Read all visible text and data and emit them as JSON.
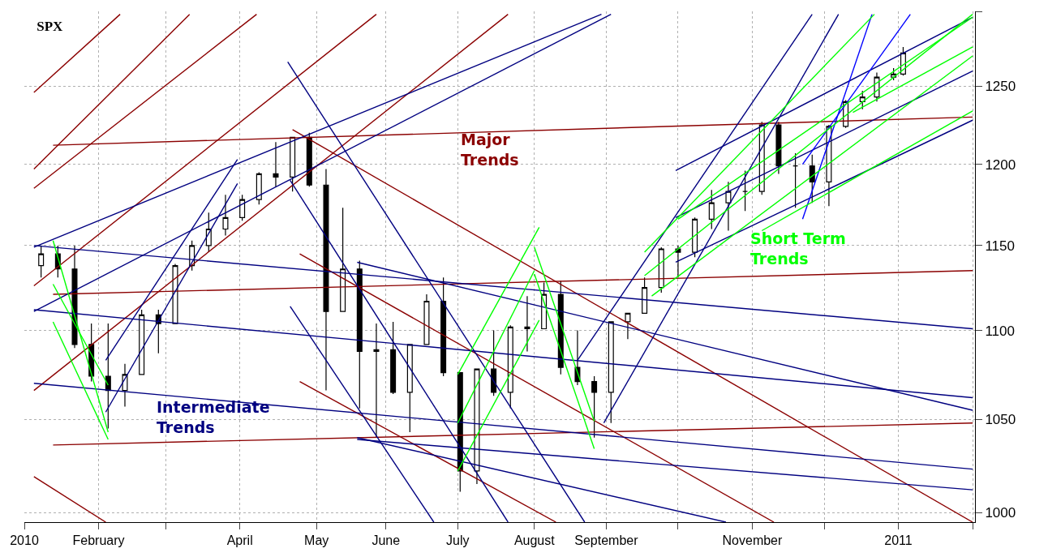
{
  "chart_data": {
    "type": "candlestick",
    "title": "SPX",
    "xlim": [
      "2010-01-01",
      "2011-02-02"
    ],
    "ylim": [
      995,
      1300
    ],
    "log": true,
    "grid": true,
    "xticks": [
      {
        "value": "2010-01-01",
        "label": "2010"
      },
      {
        "value": "2010-02-01",
        "label": "February"
      },
      {
        "value": "2010-03-01",
        "label": null
      },
      {
        "value": "2010-04-01",
        "label": "April"
      },
      {
        "value": "2010-05-03",
        "label": "May"
      },
      {
        "value": "2010-06-01",
        "label": "June"
      },
      {
        "value": "2010-07-01",
        "label": "July"
      },
      {
        "value": "2010-08-02",
        "label": "August"
      },
      {
        "value": "2010-09-01",
        "label": "September"
      },
      {
        "value": "2010-10-01",
        "label": null
      },
      {
        "value": "2010-11-01",
        "label": "November"
      },
      {
        "value": "2010-12-01",
        "label": null
      },
      {
        "value": "2011-01-01",
        "label": "2011"
      },
      {
        "value": "2011-02-01",
        "label": null
      }
    ],
    "yticks": [
      1000,
      1050,
      1100,
      1150,
      1200,
      1250,
      {
        "value": 1300,
        "label": null
      }
    ],
    "x": [
      "2010-01-08",
      "2010-01-15",
      "2010-01-22",
      "2010-01-29",
      "2010-02-05",
      "2010-02-12",
      "2010-02-19",
      "2010-02-26",
      "2010-03-05",
      "2010-03-12",
      "2010-03-19",
      "2010-03-26",
      "2010-04-02",
      "2010-04-09",
      "2010-04-16",
      "2010-04-23",
      "2010-04-30",
      "2010-05-07",
      "2010-05-14",
      "2010-05-21",
      "2010-05-28",
      "2010-06-04",
      "2010-06-11",
      "2010-06-18",
      "2010-06-25",
      "2010-07-02",
      "2010-07-09",
      "2010-07-16",
      "2010-07-23",
      "2010-07-30",
      "2010-08-06",
      "2010-08-13",
      "2010-08-20",
      "2010-08-27",
      "2010-09-03",
      "2010-09-10",
      "2010-09-17",
      "2010-09-24",
      "2010-10-01",
      "2010-10-08",
      "2010-10-15",
      "2010-10-22",
      "2010-10-29",
      "2010-11-05",
      "2010-11-12",
      "2010-11-19",
      "2010-11-26",
      "2010-12-03",
      "2010-12-10",
      "2010-12-17",
      "2010-12-23",
      "2010-12-30",
      "2011-01-03"
    ],
    "ohlc": [
      [
        1138,
        1150,
        1131,
        1145
      ],
      [
        1145,
        1150,
        1131,
        1136
      ],
      [
        1136,
        1150,
        1090,
        1092
      ],
      [
        1092,
        1104,
        1071,
        1074
      ],
      [
        1074,
        1104,
        1045,
        1066
      ],
      [
        1066,
        1081,
        1057,
        1075
      ],
      [
        1075,
        1112,
        1075,
        1109
      ],
      [
        1109,
        1112,
        1087,
        1104
      ],
      [
        1104,
        1139,
        1104,
        1138
      ],
      [
        1138,
        1153,
        1135,
        1150
      ],
      [
        1150,
        1170,
        1146,
        1160
      ],
      [
        1160,
        1181,
        1156,
        1167
      ],
      [
        1167,
        1181,
        1165,
        1178
      ],
      [
        1178,
        1195,
        1175,
        1194
      ],
      [
        1194,
        1214,
        1186,
        1192
      ],
      [
        1192,
        1217,
        1183,
        1217
      ],
      [
        1217,
        1220,
        1186,
        1187
      ],
      [
        1187,
        1197,
        1066,
        1111
      ],
      [
        1111,
        1173,
        1111,
        1136
      ],
      [
        1136,
        1141,
        1056,
        1088
      ],
      [
        1088,
        1104,
        1040,
        1089
      ],
      [
        1089,
        1105,
        1064,
        1065
      ],
      [
        1065,
        1092,
        1043,
        1092
      ],
      [
        1092,
        1121,
        1092,
        1117
      ],
      [
        1117,
        1131,
        1074,
        1076
      ],
      [
        1076,
        1076,
        1011,
        1022
      ],
      [
        1022,
        1078,
        1015,
        1078
      ],
      [
        1078,
        1100,
        1063,
        1065
      ],
      [
        1065,
        1103,
        1056,
        1102
      ],
      [
        1102,
        1120,
        1088,
        1101
      ],
      [
        1101,
        1128,
        1101,
        1121
      ],
      [
        1121,
        1129,
        1075,
        1079
      ],
      [
        1079,
        1100,
        1069,
        1071
      ],
      [
        1071,
        1074,
        1040,
        1065
      ],
      [
        1065,
        1105,
        1048,
        1105
      ],
      [
        1105,
        1110,
        1095,
        1110
      ],
      [
        1110,
        1131,
        1110,
        1125
      ],
      [
        1125,
        1149,
        1122,
        1148
      ],
      [
        1148,
        1150,
        1131,
        1146
      ],
      [
        1146,
        1167,
        1143,
        1166
      ],
      [
        1166,
        1184,
        1160,
        1176
      ],
      [
        1176,
        1189,
        1159,
        1183
      ],
      [
        1183,
        1196,
        1171,
        1183
      ],
      [
        1183,
        1227,
        1181,
        1225
      ],
      [
        1225,
        1227,
        1194,
        1199
      ],
      [
        1199,
        1207,
        1173,
        1199
      ],
      [
        1199,
        1206,
        1176,
        1189
      ],
      [
        1189,
        1225,
        1174,
        1224
      ],
      [
        1224,
        1241,
        1223,
        1240
      ],
      [
        1240,
        1247,
        1235,
        1243
      ],
      [
        1243,
        1259,
        1240,
        1256
      ],
      [
        1256,
        1262,
        1254,
        1258
      ],
      [
        1258,
        1276,
        1257,
        1272
      ]
    ],
    "series": [
      {
        "type": "line",
        "name": "Major Trends",
        "color": "#8b0000",
        "x": [
          "2010-01-13",
          "2011-02-01"
        ],
        "values": [
          1212,
          1230
        ]
      },
      {
        "type": "line",
        "color": "#8b0000",
        "x": [
          "2010-01-13",
          "2011-02-01"
        ],
        "values": [
          1121,
          1135
        ]
      },
      {
        "type": "line",
        "color": "#8b0000",
        "x": [
          "2010-01-13",
          "2011-02-01"
        ],
        "values": [
          1036,
          1048
        ]
      },
      {
        "type": "line",
        "color": "#8b0000",
        "x": [
          "2010-04-23",
          "2011-02-01"
        ],
        "values": [
          1222,
          995
        ]
      },
      {
        "type": "line",
        "color": "#8b0000",
        "x": [
          "2010-04-26",
          "2010-11-10"
        ],
        "values": [
          1145,
          995
        ]
      },
      {
        "type": "line",
        "color": "#8b0000",
        "x": [
          "2010-04-26",
          "2010-08-11"
        ],
        "values": [
          1071,
          995
        ]
      },
      {
        "type": "line",
        "color": "#8b0000",
        "x": [
          "2010-01-05",
          "2010-02-04"
        ],
        "values": [
          1019,
          995
        ]
      },
      {
        "type": "line",
        "color": "#8b0000",
        "x": [
          "2010-01-05",
          "2010-07-22"
        ],
        "values": [
          1066,
          1298
        ]
      },
      {
        "type": "line",
        "color": "#8b0000",
        "x": [
          "2010-01-05",
          "2010-05-28"
        ],
        "values": [
          1126,
          1298
        ]
      },
      {
        "type": "line",
        "color": "#8b0000",
        "x": [
          "2010-01-05",
          "2010-04-08"
        ],
        "values": [
          1185,
          1298
        ]
      },
      {
        "type": "line",
        "color": "#8b0000",
        "x": [
          "2010-01-05",
          "2010-03-11"
        ],
        "values": [
          1197,
          1298
        ]
      },
      {
        "type": "line",
        "color": "#8b0000",
        "x": [
          "2010-01-05",
          "2010-02-10"
        ],
        "values": [
          1246,
          1298
        ]
      },
      {
        "type": "line",
        "name": "Intermediate Trends",
        "color": "#000080",
        "x": [
          "2010-01-05",
          "2011-02-01"
        ],
        "values": [
          1150,
          1101
        ]
      },
      {
        "type": "line",
        "color": "#000080",
        "x": [
          "2010-01-05",
          "2011-02-01"
        ],
        "values": [
          1112,
          1062
        ]
      },
      {
        "type": "line",
        "color": "#000080",
        "x": [
          "2010-01-05",
          "2011-02-01"
        ],
        "values": [
          1070,
          1023
        ]
      },
      {
        "type": "line",
        "color": "#000080",
        "x": [
          "2010-05-20",
          "2011-02-01"
        ],
        "values": [
          1140,
          1055
        ]
      },
      {
        "type": "line",
        "color": "#000080",
        "x": [
          "2010-05-20",
          "2011-02-01"
        ],
        "values": [
          1039,
          1012
        ]
      },
      {
        "type": "line",
        "color": "#000080",
        "x": [
          "2010-05-20",
          "2010-10-21"
        ],
        "values": [
          1040,
          995
        ]
      },
      {
        "type": "line",
        "color": "#000080",
        "x": [
          "2010-01-05",
          "2010-08-30"
        ],
        "values": [
          1149,
          1298
        ]
      },
      {
        "type": "line",
        "color": "#000080",
        "x": [
          "2010-01-05",
          "2010-09-03"
        ],
        "values": [
          1111,
          1298
        ]
      },
      {
        "type": "line",
        "color": "#000080",
        "x": [
          "2010-02-04",
          "2010-03-31"
        ],
        "values": [
          1083,
          1203
        ]
      },
      {
        "type": "line",
        "color": "#000080",
        "x": [
          "2010-02-04",
          "2010-03-31"
        ],
        "values": [
          1054,
          1188
        ]
      },
      {
        "type": "line",
        "color": "#000080",
        "x": [
          "2010-04-21",
          "2010-08-23"
        ],
        "values": [
          1266,
          995
        ]
      },
      {
        "type": "line",
        "color": "#000080",
        "x": [
          "2010-04-22",
          "2010-07-22"
        ],
        "values": [
          1190,
          995
        ]
      },
      {
        "type": "line",
        "color": "#000080",
        "x": [
          "2010-04-22",
          "2010-06-21"
        ],
        "values": [
          1114,
          995
        ]
      },
      {
        "type": "line",
        "color": "#000080",
        "x": [
          "2010-08-20",
          "2010-11-26"
        ],
        "values": [
          1083,
          1298
        ]
      },
      {
        "type": "line",
        "color": "#000080",
        "x": [
          "2010-08-31",
          "2010-12-07"
        ],
        "values": [
          1048,
          1298
        ]
      },
      {
        "type": "line",
        "color": "#000080",
        "x": [
          "2010-09-30",
          "2011-02-01"
        ],
        "values": [
          1196,
          1296
        ]
      },
      {
        "type": "line",
        "color": "#000080",
        "x": [
          "2010-09-30",
          "2011-02-01"
        ],
        "values": [
          1167,
          1260
        ]
      },
      {
        "type": "line",
        "color": "#000080",
        "x": [
          "2010-09-30",
          "2011-02-01"
        ],
        "values": [
          1140,
          1228
        ]
      },
      {
        "type": "line",
        "color": "#0000ff",
        "x": [
          "2010-11-22",
          "2010-12-21"
        ],
        "values": [
          1166,
          1298
        ]
      },
      {
        "type": "line",
        "color": "#0000ff",
        "x": [
          "2010-11-22",
          "2011-01-06"
        ],
        "values": [
          1200,
          1298
        ]
      },
      {
        "type": "line",
        "color": "#00ff00",
        "x": [
          "2010-01-13",
          "2010-02-05"
        ],
        "values": [
          1153,
          1043
        ]
      },
      {
        "type": "line",
        "color": "#00ff00",
        "x": [
          "2010-01-13",
          "2010-02-05"
        ],
        "values": [
          1127,
          1069
        ]
      },
      {
        "type": "line",
        "color": "#00ff00",
        "x": [
          "2010-01-13",
          "2010-02-05"
        ],
        "values": [
          1105,
          1039
        ]
      },
      {
        "type": "line",
        "color": "#00ff00",
        "x": [
          "2010-07-01",
          "2010-08-04"
        ],
        "values": [
          1075,
          1161
        ]
      },
      {
        "type": "line",
        "color": "#00ff00",
        "x": [
          "2010-07-01",
          "2010-08-02"
        ],
        "values": [
          1048,
          1135
        ]
      },
      {
        "type": "line",
        "color": "#00ff00",
        "x": [
          "2010-07-01",
          "2010-08-04"
        ],
        "values": [
          1022,
          1106
        ]
      },
      {
        "type": "line",
        "color": "#00ff00",
        "x": [
          "2010-08-02",
          "2010-08-27"
        ],
        "values": [
          1149,
          1049
        ]
      },
      {
        "type": "line",
        "color": "#00ff00",
        "x": [
          "2010-08-02",
          "2010-08-27"
        ],
        "values": [
          1133,
          1034
        ]
      },
      {
        "type": "line",
        "name": "Short Term Trends",
        "color": "#00ff00",
        "x": [
          "2010-09-17",
          "2010-12-22"
        ],
        "values": [
          1146,
          1298
        ]
      },
      {
        "type": "line",
        "color": "#00ff00",
        "x": [
          "2010-09-17",
          "2011-02-01"
        ],
        "values": [
          1132,
          1298
        ]
      },
      {
        "type": "line",
        "color": "#00ff00",
        "x": [
          "2010-09-20",
          "2011-02-01"
        ],
        "values": [
          1120,
          1270
        ]
      },
      {
        "type": "line",
        "color": "#00ff00",
        "x": [
          "2010-11-05",
          "2011-02-01"
        ],
        "values": [
          1159,
          1234
        ]
      },
      {
        "type": "line",
        "color": "#00ff00",
        "x": [
          "2010-12-13",
          "2011-02-01"
        ],
        "values": [
          1233,
          1276
        ]
      },
      {
        "type": "line",
        "color": "#00ff00",
        "x": [
          "2010-10-01",
          "2011-02-01"
        ],
        "values": [
          1166,
          1296
        ]
      }
    ]
  }
}
